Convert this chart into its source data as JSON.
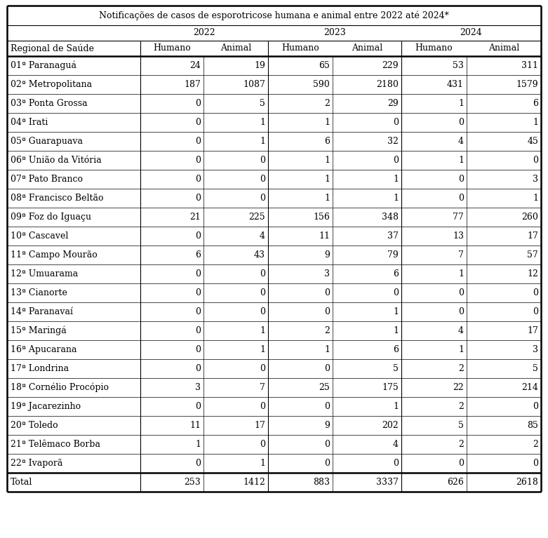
{
  "title": "Notificações de casos de esporotricose humana e animal entre 2022 até 2024*",
  "year_headers": [
    "2022",
    "2023",
    "2024"
  ],
  "col0_header": "Regional de Saúde",
  "sub_headers": [
    "Humano",
    "Animal",
    "Humano",
    "Animal",
    "Humano",
    "Animal"
  ],
  "rows": [
    [
      "01ª Paranaguá",
      24,
      19,
      65,
      229,
      53,
      311
    ],
    [
      "02ª Metropolitana",
      187,
      1087,
      590,
      2180,
      431,
      1579
    ],
    [
      "03ª Ponta Grossa",
      0,
      5,
      2,
      29,
      1,
      6
    ],
    [
      "04ª Irati",
      0,
      1,
      1,
      0,
      0,
      1
    ],
    [
      "05ª Guarapuava",
      0,
      1,
      6,
      32,
      4,
      45
    ],
    [
      "06ª União da Vitória",
      0,
      0,
      1,
      0,
      1,
      0
    ],
    [
      "07ª Pato Branco",
      0,
      0,
      1,
      1,
      0,
      3
    ],
    [
      "08ª Francisco Beltão",
      0,
      0,
      1,
      1,
      0,
      1
    ],
    [
      "09ª Foz do Iguaçu",
      21,
      225,
      156,
      348,
      77,
      260
    ],
    [
      "10ª Cascavel",
      0,
      4,
      11,
      37,
      13,
      17
    ],
    [
      "11ª Campo Mourão",
      6,
      43,
      9,
      79,
      7,
      57
    ],
    [
      "12ª Umuarama",
      0,
      0,
      3,
      6,
      1,
      12
    ],
    [
      "13ª Cianorte",
      0,
      0,
      0,
      0,
      0,
      0
    ],
    [
      "14ª Paranavaí",
      0,
      0,
      0,
      1,
      0,
      0
    ],
    [
      "15ª Maringá",
      0,
      1,
      2,
      1,
      4,
      17
    ],
    [
      "16ª Apucarana",
      0,
      1,
      1,
      6,
      1,
      3
    ],
    [
      "17ª Londrina",
      0,
      0,
      0,
      5,
      2,
      5
    ],
    [
      "18ª Cornélio Procópio",
      3,
      7,
      25,
      175,
      22,
      214
    ],
    [
      "19ª Jacarezinho",
      0,
      0,
      0,
      1,
      2,
      0
    ],
    [
      "20ª Toledo",
      11,
      17,
      9,
      202,
      5,
      85
    ],
    [
      "21ª Telêmaco Borba",
      1,
      0,
      0,
      4,
      2,
      2
    ],
    [
      "22ª Ivaporã",
      0,
      1,
      0,
      0,
      0,
      0
    ]
  ],
  "total_row": [
    "Total",
    253,
    1412,
    883,
    3337,
    626,
    2618
  ],
  "font_size": 9.0,
  "title_font_size": 9.0,
  "background_color": "#ffffff",
  "text_color": "#000000",
  "line_color": "#000000"
}
